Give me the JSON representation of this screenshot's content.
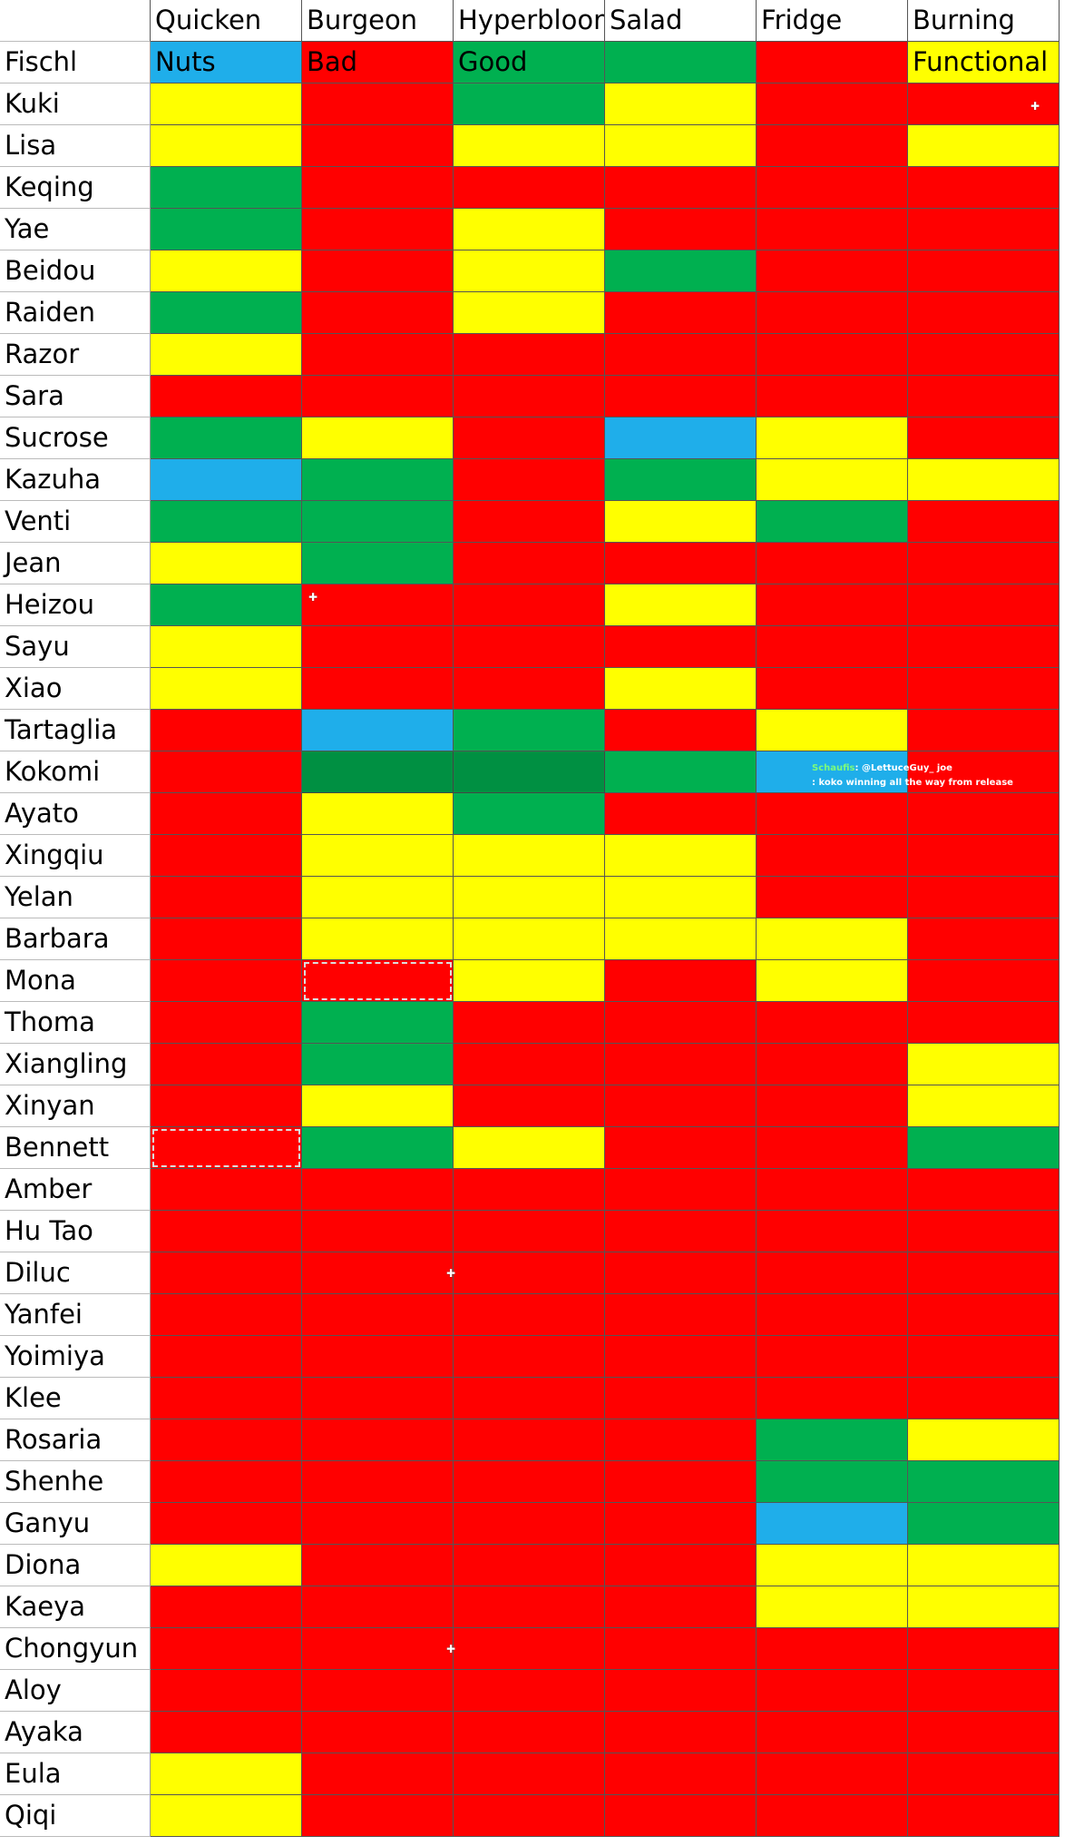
{
  "chart_data": {
    "type": "table",
    "columns": [
      "Quicken",
      "Burgeon",
      "Hyperbloom",
      "Salad",
      "Fridge",
      "Burning"
    ],
    "legend_colors": {
      "Nuts": "#1FAEEA",
      "Good": "#00B050",
      "Functional": "#FFFF00",
      "Bad": "#FF0000"
    },
    "rows": [
      {
        "name": "Fischl",
        "ratings": [
          "Nuts",
          "Bad",
          "Good",
          "Good",
          "Bad",
          "Functional"
        ],
        "cell_text": [
          "Nuts",
          "Bad",
          "Good",
          "",
          "",
          "Functional"
        ]
      },
      {
        "name": "Kuki",
        "ratings": [
          "Functional",
          "Bad",
          "Good",
          "Functional",
          "Bad",
          "Bad"
        ]
      },
      {
        "name": "Lisa",
        "ratings": [
          "Functional",
          "Bad",
          "Functional",
          "Functional",
          "Bad",
          "Functional"
        ]
      },
      {
        "name": "Keqing",
        "ratings": [
          "Good",
          "Bad",
          "Bad",
          "Bad",
          "Bad",
          "Bad"
        ]
      },
      {
        "name": "Yae",
        "ratings": [
          "Good",
          "Bad",
          "Functional",
          "Bad",
          "Bad",
          "Bad"
        ]
      },
      {
        "name": "Beidou",
        "ratings": [
          "Functional",
          "Bad",
          "Functional",
          "Good",
          "Bad",
          "Bad"
        ]
      },
      {
        "name": "Raiden",
        "ratings": [
          "Good",
          "Bad",
          "Functional",
          "Bad",
          "Bad",
          "Bad"
        ]
      },
      {
        "name": "Razor",
        "ratings": [
          "Functional",
          "Bad",
          "Bad",
          "Bad",
          "Bad",
          "Bad"
        ]
      },
      {
        "name": "Sara",
        "ratings": [
          "Bad",
          "Bad",
          "Bad",
          "Bad",
          "Bad",
          "Bad"
        ]
      },
      {
        "name": "Sucrose",
        "ratings": [
          "Good",
          "Functional",
          "Bad",
          "Nuts",
          "Functional",
          "Bad"
        ]
      },
      {
        "name": "Kazuha",
        "ratings": [
          "Nuts",
          "Good",
          "Bad",
          "Good",
          "Functional",
          "Functional"
        ]
      },
      {
        "name": "Venti",
        "ratings": [
          "Good",
          "Good",
          "Bad",
          "Functional",
          "Good",
          "Bad"
        ]
      },
      {
        "name": "Jean",
        "ratings": [
          "Functional",
          "Good",
          "Bad",
          "Bad",
          "Bad",
          "Bad"
        ]
      },
      {
        "name": "Heizou",
        "ratings": [
          "Good",
          "Bad",
          "Bad",
          "Functional",
          "Bad",
          "Bad"
        ]
      },
      {
        "name": "Sayu",
        "ratings": [
          "Functional",
          "Bad",
          "Bad",
          "Bad",
          "Bad",
          "Bad"
        ]
      },
      {
        "name": "Xiao",
        "ratings": [
          "Functional",
          "Bad",
          "Bad",
          "Functional",
          "Bad",
          "Bad"
        ]
      },
      {
        "name": "Tartaglia",
        "ratings": [
          "Bad",
          "Nuts",
          "Good",
          "Bad",
          "Functional",
          "Bad"
        ]
      },
      {
        "name": "Kokomi",
        "ratings": [
          "Bad",
          "Good",
          "Good",
          "Good",
          "Nuts",
          "Bad"
        ]
      },
      {
        "name": "Ayato",
        "ratings": [
          "Bad",
          "Functional",
          "Good",
          "Bad",
          "Bad",
          "Bad"
        ]
      },
      {
        "name": "Xingqiu",
        "ratings": [
          "Bad",
          "Functional",
          "Functional",
          "Functional",
          "Bad",
          "Bad"
        ]
      },
      {
        "name": "Yelan",
        "ratings": [
          "Bad",
          "Functional",
          "Functional",
          "Functional",
          "Bad",
          "Bad"
        ]
      },
      {
        "name": "Barbara",
        "ratings": [
          "Bad",
          "Functional",
          "Functional",
          "Functional",
          "Functional",
          "Bad"
        ]
      },
      {
        "name": "Mona",
        "ratings": [
          "Bad",
          "Bad",
          "Functional",
          "Bad",
          "Functional",
          "Bad"
        ]
      },
      {
        "name": "Thoma",
        "ratings": [
          "Bad",
          "Good",
          "Bad",
          "Bad",
          "Bad",
          "Bad"
        ]
      },
      {
        "name": "Xiangling",
        "ratings": [
          "Bad",
          "Good",
          "Bad",
          "Bad",
          "Bad",
          "Functional"
        ]
      },
      {
        "name": "Xinyan",
        "ratings": [
          "Bad",
          "Functional",
          "Bad",
          "Bad",
          "Bad",
          "Functional"
        ]
      },
      {
        "name": "Bennett",
        "ratings": [
          "Bad",
          "Good",
          "Functional",
          "Bad",
          "Bad",
          "Good"
        ]
      },
      {
        "name": "Amber",
        "ratings": [
          "Bad",
          "Bad",
          "Bad",
          "Bad",
          "Bad",
          "Bad"
        ]
      },
      {
        "name": "Hu Tao",
        "ratings": [
          "Bad",
          "Bad",
          "Bad",
          "Bad",
          "Bad",
          "Bad"
        ]
      },
      {
        "name": "Diluc",
        "ratings": [
          "Bad",
          "Bad",
          "Bad",
          "Bad",
          "Bad",
          "Bad"
        ]
      },
      {
        "name": "Yanfei",
        "ratings": [
          "Bad",
          "Bad",
          "Bad",
          "Bad",
          "Bad",
          "Bad"
        ]
      },
      {
        "name": "Yoimiya",
        "ratings": [
          "Bad",
          "Bad",
          "Bad",
          "Bad",
          "Bad",
          "Bad"
        ]
      },
      {
        "name": "Klee",
        "ratings": [
          "Bad",
          "Bad",
          "Bad",
          "Bad",
          "Bad",
          "Bad"
        ]
      },
      {
        "name": "Rosaria",
        "ratings": [
          "Bad",
          "Bad",
          "Bad",
          "Bad",
          "Good",
          "Functional"
        ]
      },
      {
        "name": "Shenhe",
        "ratings": [
          "Bad",
          "Bad",
          "Bad",
          "Bad",
          "Good",
          "Good"
        ]
      },
      {
        "name": "Ganyu",
        "ratings": [
          "Bad",
          "Bad",
          "Bad",
          "Bad",
          "Nuts",
          "Good"
        ]
      },
      {
        "name": "Diona",
        "ratings": [
          "Functional",
          "Bad",
          "Bad",
          "Bad",
          "Functional",
          "Functional"
        ]
      },
      {
        "name": "Kaeya",
        "ratings": [
          "Bad",
          "Bad",
          "Bad",
          "Bad",
          "Functional",
          "Functional"
        ]
      },
      {
        "name": "Chongyun",
        "ratings": [
          "Bad",
          "Bad",
          "Bad",
          "Bad",
          "Bad",
          "Bad"
        ]
      },
      {
        "name": "Aloy",
        "ratings": [
          "Bad",
          "Bad",
          "Bad",
          "Bad",
          "Bad",
          "Bad"
        ]
      },
      {
        "name": "Ayaka",
        "ratings": [
          "Bad",
          "Bad",
          "Bad",
          "Bad",
          "Bad",
          "Bad"
        ]
      },
      {
        "name": "Eula",
        "ratings": [
          "Functional",
          "Bad",
          "Bad",
          "Bad",
          "Bad",
          "Bad"
        ]
      },
      {
        "name": "Qiqi",
        "ratings": [
          "Functional",
          "Bad",
          "Bad",
          "Bad",
          "Bad",
          "Bad"
        ]
      }
    ]
  },
  "chat_overlay": {
    "line1_user": "Schaufis",
    "line1_text": ": @LettuceGuy_ joe",
    "line2_text": ": koko winning all the way from release"
  }
}
